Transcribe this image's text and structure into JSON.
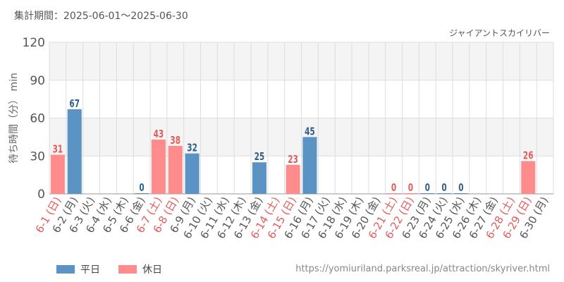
{
  "header": {
    "period": "集計期間：2025-06-01～2025-06-30",
    "chart_title": "ジャイアントスカイリバー"
  },
  "footer": {
    "url": "https://yomiuriland.parksreal.jp/attraction/skyriver.html"
  },
  "colors": {
    "weekday": "#5b93c4",
    "holiday": "#ff8c8c",
    "weekday_text": "#2f5f8a",
    "holiday_text": "#e35b5b",
    "band": "#f4f4f4",
    "grid": "#dddddd"
  },
  "chart_data": {
    "type": "bar",
    "title": "ジャイアントスカイリバー",
    "ylabel": "待ち時間（分） min",
    "ylim": [
      0,
      120
    ],
    "yticks": [
      0,
      30,
      60,
      90,
      120
    ],
    "categories": [
      "6-1 (日)",
      "6-2 (月)",
      "6-3 (火)",
      "6-4 (水)",
      "6-5 (木)",
      "6-6 (金)",
      "6-7 (土)",
      "6-8 (日)",
      "6-9 (月)",
      "6-10 (火)",
      "6-11 (水)",
      "6-12 (木)",
      "6-13 (金)",
      "6-14 (土)",
      "6-15 (日)",
      "6-16 (月)",
      "6-17 (火)",
      "6-18 (水)",
      "6-19 (木)",
      "6-20 (金)",
      "6-21 (土)",
      "6-22 (日)",
      "6-23 (月)",
      "6-24 (火)",
      "6-25 (水)",
      "6-26 (木)",
      "6-27 (金)",
      "6-28 (土)",
      "6-29 (日)",
      "6-30 (月)"
    ],
    "day_type": [
      "holiday",
      "weekday",
      "weekday",
      "weekday",
      "weekday",
      "weekday",
      "holiday",
      "holiday",
      "weekday",
      "weekday",
      "weekday",
      "weekday",
      "weekday",
      "holiday",
      "holiday",
      "weekday",
      "weekday",
      "weekday",
      "weekday",
      "weekday",
      "holiday",
      "holiday",
      "weekday",
      "weekday",
      "weekday",
      "weekday",
      "weekday",
      "holiday",
      "holiday",
      "weekday"
    ],
    "values": [
      31,
      67,
      null,
      null,
      null,
      0,
      43,
      38,
      32,
      null,
      null,
      null,
      25,
      null,
      23,
      45,
      null,
      null,
      null,
      null,
      0,
      0,
      0,
      0,
      0,
      null,
      null,
      null,
      26,
      null
    ],
    "legend": [
      "平日",
      "休日"
    ],
    "legend_position": "bottom-left",
    "grid": true
  }
}
